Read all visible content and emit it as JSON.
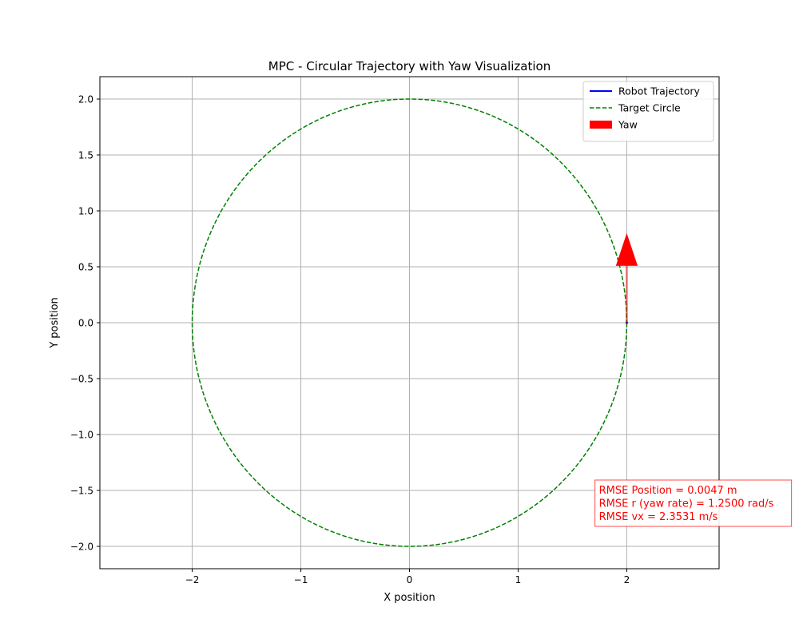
{
  "chart_data": {
    "type": "line",
    "title": "MPC - Circular Trajectory with Yaw Visualization",
    "xlabel": "X position",
    "ylabel": "Y position",
    "xlim": [
      -2.85,
      2.85
    ],
    "ylim": [
      -2.2,
      2.2
    ],
    "xticks": [
      -2,
      -1,
      0,
      1,
      2
    ],
    "xtick_labels": [
      "−2",
      "−1",
      "0",
      "1",
      "2"
    ],
    "yticks": [
      2.0,
      1.5,
      1.0,
      0.5,
      0.0,
      -0.5,
      -1.0,
      -1.5,
      -2.0
    ],
    "ytick_labels": [
      "2.0",
      "1.5",
      "1.0",
      "0.5",
      "0.0",
      "−0.5",
      "−1.0",
      "−1.5",
      "−2.0"
    ],
    "grid": true,
    "legend_position": "top-right",
    "series": [
      {
        "name": "Robot Trajectory",
        "kind": "line",
        "color": "#0000ff",
        "x": [
          2.0
        ],
        "y": [
          0.0
        ]
      },
      {
        "name": "Target Circle",
        "kind": "dashed-line",
        "color": "#008000",
        "center": [
          0,
          0
        ],
        "radius": 2.0
      },
      {
        "name": "Yaw",
        "kind": "arrow",
        "color": "#ff0000",
        "x": 2.0,
        "y": 0.0,
        "dx": 0.0,
        "dy": 0.8
      }
    ],
    "annotation": {
      "lines": [
        "RMSE Position = 0.0047 m",
        "RMSE r (yaw rate) = 1.2500 rad/s",
        "RMSE vx = 2.3531 m/s"
      ],
      "color": "#ff0000",
      "anchor": [
        1.7,
        -1.55
      ]
    }
  }
}
